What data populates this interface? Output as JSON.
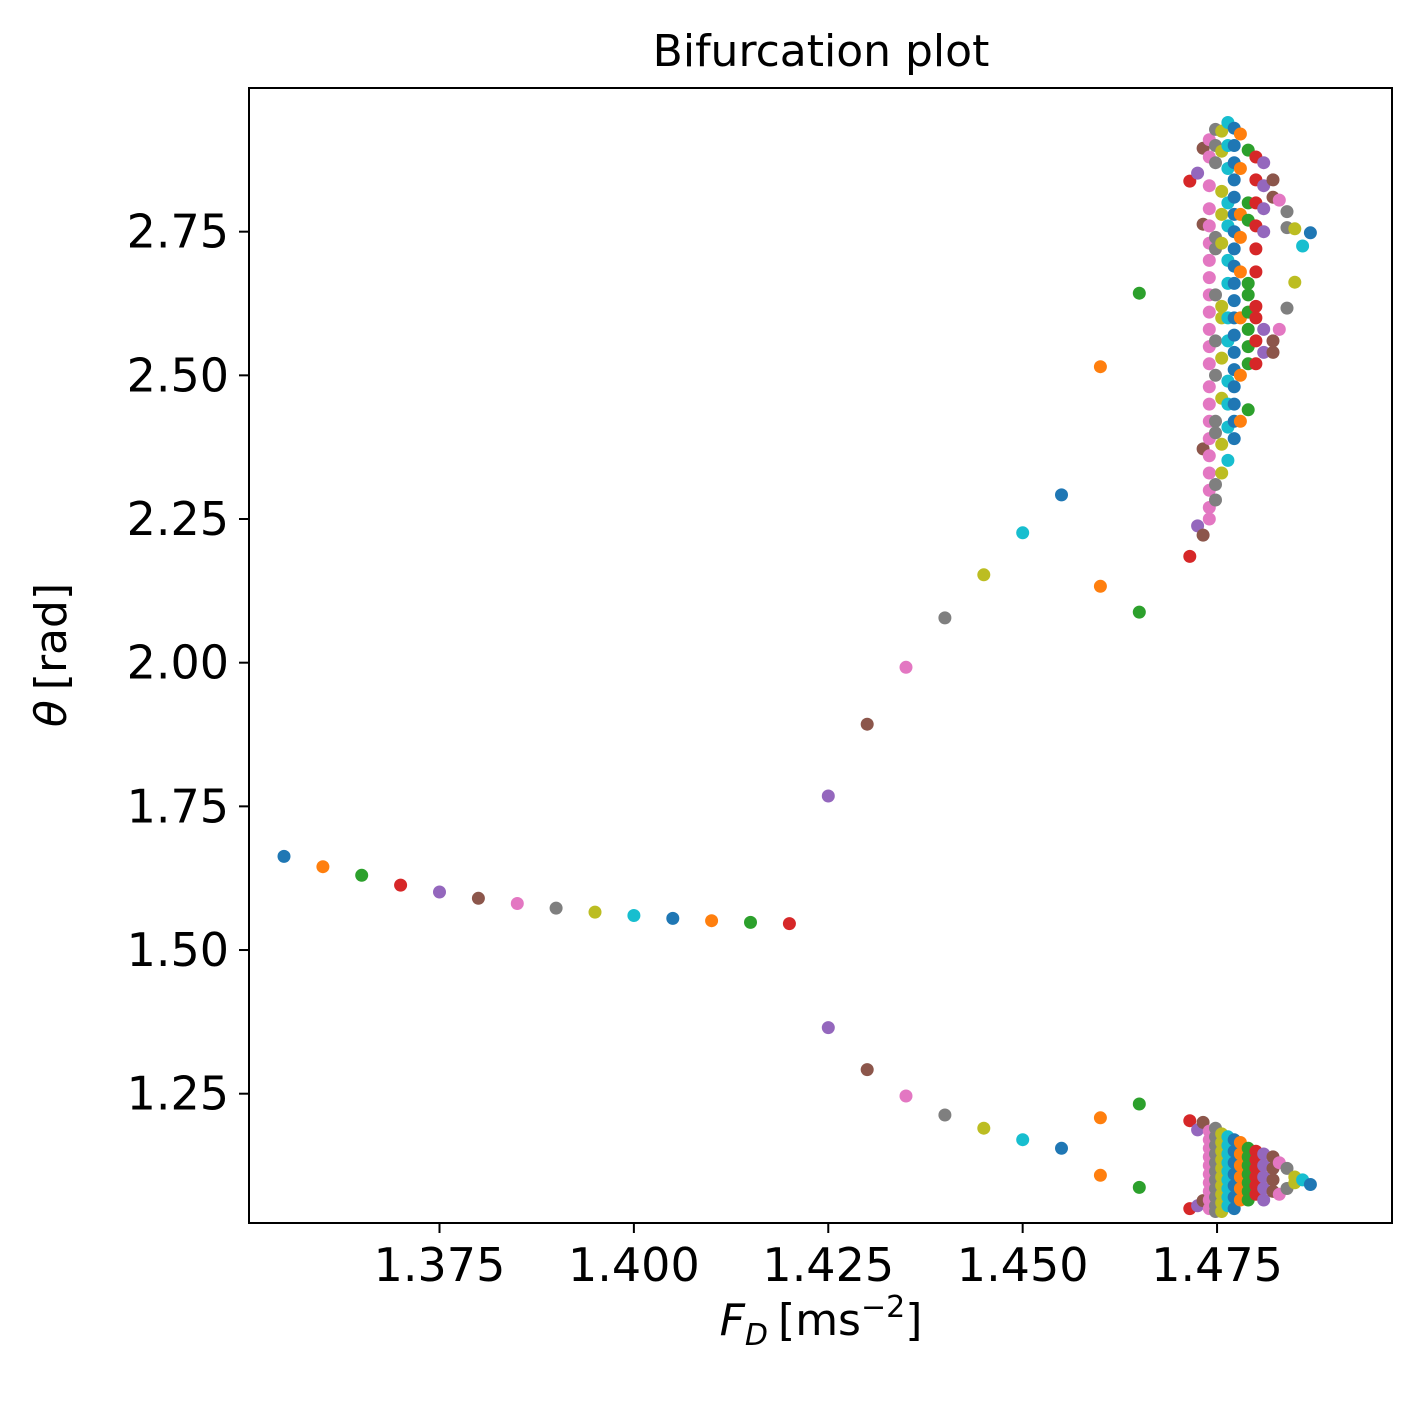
{
  "chart_data": {
    "type": "scatter",
    "title": "Bifurcation plot",
    "xlabel": {
      "symbol": "F",
      "subscript": "D",
      "unit": "[ms",
      "unit_exp": "−2",
      "unit_close": "]"
    },
    "ylabel": {
      "symbol": "θ",
      "unit": "[rad]"
    },
    "xlim": [
      1.3505,
      1.4975
    ],
    "ylim": [
      1.025,
      3.0
    ],
    "xticks": [
      1.375,
      1.4,
      1.425,
      1.45,
      1.475
    ],
    "xtick_labels": [
      "1.375",
      "1.400",
      "1.425",
      "1.450",
      "1.475"
    ],
    "yticks": [
      1.25,
      1.5,
      1.75,
      2.0,
      2.25,
      2.5,
      2.75
    ],
    "ytick_labels": [
      "1.25",
      "1.50",
      "1.75",
      "2.00",
      "2.25",
      "2.50",
      "2.75"
    ],
    "grid": false,
    "palette": [
      "#1f77b4",
      "#ff7f0e",
      "#2ca02c",
      "#d62728",
      "#9467bd",
      "#8c564b",
      "#e377c2",
      "#7f7f7f",
      "#bcbd22",
      "#17becf"
    ],
    "series": [
      {
        "x": 1.355,
        "y": [
          1.663
        ]
      },
      {
        "x": 1.36,
        "y": [
          1.645
        ]
      },
      {
        "x": 1.365,
        "y": [
          1.63
        ]
      },
      {
        "x": 1.37,
        "y": [
          1.613
        ]
      },
      {
        "x": 1.375,
        "y": [
          1.601
        ]
      },
      {
        "x": 1.38,
        "y": [
          1.59
        ]
      },
      {
        "x": 1.385,
        "y": [
          1.581
        ]
      },
      {
        "x": 1.39,
        "y": [
          1.573
        ]
      },
      {
        "x": 1.395,
        "y": [
          1.566
        ]
      },
      {
        "x": 1.4,
        "y": [
          1.56
        ]
      },
      {
        "x": 1.405,
        "y": [
          1.555
        ]
      },
      {
        "x": 1.41,
        "y": [
          1.551
        ]
      },
      {
        "x": 1.415,
        "y": [
          1.548
        ]
      },
      {
        "x": 1.42,
        "y": [
          1.546
        ]
      },
      {
        "x": 1.425,
        "y": [
          1.768,
          1.365
        ]
      },
      {
        "x": 1.43,
        "y": [
          1.893,
          1.292
        ]
      },
      {
        "x": 1.435,
        "y": [
          1.992,
          1.246
        ]
      },
      {
        "x": 1.44,
        "y": [
          2.078,
          1.213
        ]
      },
      {
        "x": 1.445,
        "y": [
          2.153,
          1.19
        ]
      },
      {
        "x": 1.45,
        "y": [
          2.226,
          1.17
        ]
      },
      {
        "x": 1.455,
        "y": [
          2.292,
          1.155
        ]
      },
      {
        "x": 1.46,
        "y": [
          2.515,
          2.133,
          1.208,
          1.108
        ]
      },
      {
        "x": 1.465,
        "y": [
          2.643,
          2.088,
          1.232,
          1.087
        ]
      },
      {
        "x": 1.4715,
        "y": [
          2.838,
          2.185,
          1.203,
          1.05
        ]
      },
      {
        "x": 1.4725,
        "y": [
          2.852,
          2.238,
          1.187,
          1.055
        ]
      },
      {
        "x": 1.4732,
        "y": [
          2.895,
          2.763,
          2.372,
          2.222,
          1.2,
          1.064
        ]
      },
      {
        "x": 1.474,
        "y": [
          2.91,
          2.88,
          2.83,
          2.79,
          2.76,
          2.73,
          2.7,
          2.67,
          2.64,
          2.61,
          2.58,
          2.55,
          2.52,
          2.48,
          2.45,
          2.42,
          2.39,
          2.36,
          2.33,
          2.3,
          2.27,
          2.25,
          1.185,
          1.17,
          1.155,
          1.14,
          1.125,
          1.11,
          1.095,
          1.08,
          1.065,
          1.05
        ]
      },
      {
        "x": 1.4748,
        "y": [
          2.928,
          2.9,
          2.87,
          2.74,
          2.72,
          2.64,
          2.56,
          2.5,
          2.42,
          2.4,
          2.31,
          2.283,
          1.19,
          1.175,
          1.16,
          1.145,
          1.13,
          1.115,
          1.1,
          1.085,
          1.07,
          1.055,
          1.045
        ]
      },
      {
        "x": 1.4756,
        "y": [
          2.925,
          2.89,
          2.82,
          2.78,
          2.73,
          2.62,
          2.6,
          2.53,
          2.46,
          2.38,
          2.33,
          1.18,
          1.165,
          1.15,
          1.135,
          1.12,
          1.105,
          1.09,
          1.075,
          1.06,
          1.045
        ]
      },
      {
        "x": 1.4764,
        "y": [
          2.94,
          2.9,
          2.86,
          2.8,
          2.76,
          2.7,
          2.66,
          2.6,
          2.56,
          2.49,
          2.45,
          2.41,
          2.352,
          1.175,
          1.16,
          1.145,
          1.13,
          1.115,
          1.1,
          1.085,
          1.07,
          1.055
        ]
      },
      {
        "x": 1.4772,
        "y": [
          2.93,
          2.9,
          2.87,
          2.84,
          2.81,
          2.78,
          2.75,
          2.72,
          2.69,
          2.66,
          2.63,
          2.6,
          2.57,
          2.54,
          2.51,
          2.48,
          2.45,
          2.42,
          2.39,
          1.17,
          1.15,
          1.13,
          1.11,
          1.09,
          1.07,
          1.05
        ]
      },
      {
        "x": 1.478,
        "y": [
          2.92,
          2.86,
          2.78,
          2.74,
          2.68,
          2.6,
          2.5,
          2.42,
          1.165,
          1.145,
          1.125,
          1.105,
          1.085,
          1.065
        ]
      },
      {
        "x": 1.479,
        "y": [
          2.892,
          2.8,
          2.77,
          2.66,
          2.64,
          2.61,
          2.58,
          2.55,
          2.52,
          2.44,
          1.155,
          1.14,
          1.125,
          1.11,
          1.095,
          1.08,
          1.065
        ]
      },
      {
        "x": 1.48,
        "y": [
          2.88,
          2.84,
          2.8,
          2.76,
          2.72,
          2.68,
          2.62,
          2.6,
          2.56,
          2.52,
          1.15,
          1.135,
          1.12,
          1.105,
          1.09,
          1.075
        ]
      },
      {
        "x": 1.481,
        "y": [
          2.87,
          2.83,
          2.79,
          2.75,
          2.58,
          2.54,
          1.145,
          1.125,
          1.105,
          1.085,
          1.065
        ]
      },
      {
        "x": 1.4822,
        "y": [
          2.84,
          2.81,
          2.56,
          2.54,
          1.14,
          1.12,
          1.1,
          1.08
        ]
      },
      {
        "x": 1.483,
        "y": [
          2.805,
          2.58,
          1.13,
          1.075
        ]
      },
      {
        "x": 1.484,
        "y": [
          2.785,
          2.757,
          2.617,
          1.12,
          1.085
        ]
      },
      {
        "x": 1.485,
        "y": [
          2.755,
          2.662,
          1.105,
          1.095
        ]
      },
      {
        "x": 1.486,
        "y": [
          2.725,
          1.1
        ]
      },
      {
        "x": 1.487,
        "y": [
          2.748,
          1.092
        ]
      }
    ]
  }
}
